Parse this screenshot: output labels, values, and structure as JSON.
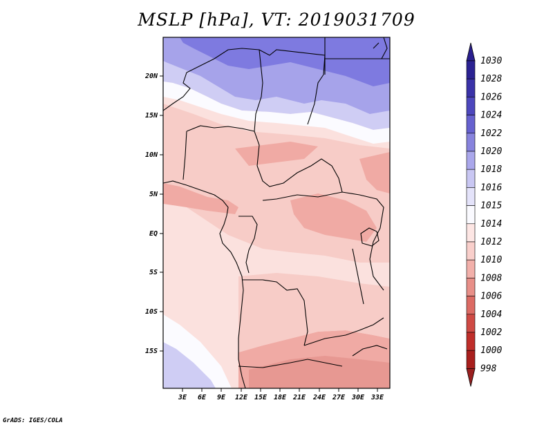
{
  "title": "MSLP [hPa], VT: 2019031709",
  "credit": "GrADS: IGES/COLA",
  "map": {
    "lat_labels": [
      "20N",
      "15N",
      "10N",
      "5N",
      "EQ",
      "5S",
      "10S",
      "15S"
    ],
    "lon_labels": [
      "3E",
      "6E",
      "9E",
      "12E",
      "15E",
      "18E",
      "21E",
      "24E",
      "27E",
      "30E",
      "33E"
    ]
  },
  "colorbar": {
    "levels": [
      "1030",
      "1028",
      "1026",
      "1024",
      "1022",
      "1020",
      "1018",
      "1016",
      "1015",
      "1014",
      "1012",
      "1010",
      "1008",
      "1006",
      "1004",
      "1002",
      "1000",
      "998"
    ],
    "colors": {
      "top_arrow": "#2a1f8f",
      "bottom_arrow": "#9a1f1f",
      "bands": [
        "#2b2292",
        "#3a32a8",
        "#4d47bd",
        "#6661cf",
        "#8783dd",
        "#aaa7eb",
        "#c9c7f3",
        "#e4e3fa",
        "#fafaff",
        "#fde6e4",
        "#f9cfcb",
        "#f2b0aa",
        "#e88f88",
        "#dc6b64",
        "#cf4a44",
        "#bf2e2a",
        "#a81f1d"
      ]
    }
  },
  "field_colors": {
    "blue_dark": "#7e7ae0",
    "blue_mid": "#a6a3ea",
    "blue_light": "#cfcdf4",
    "white": "#fbfbff",
    "pink_light": "#fbe1de",
    "pink": "#f7ccc7",
    "salmon": "#f0aaa4",
    "salmon_dark": "#e79892"
  }
}
